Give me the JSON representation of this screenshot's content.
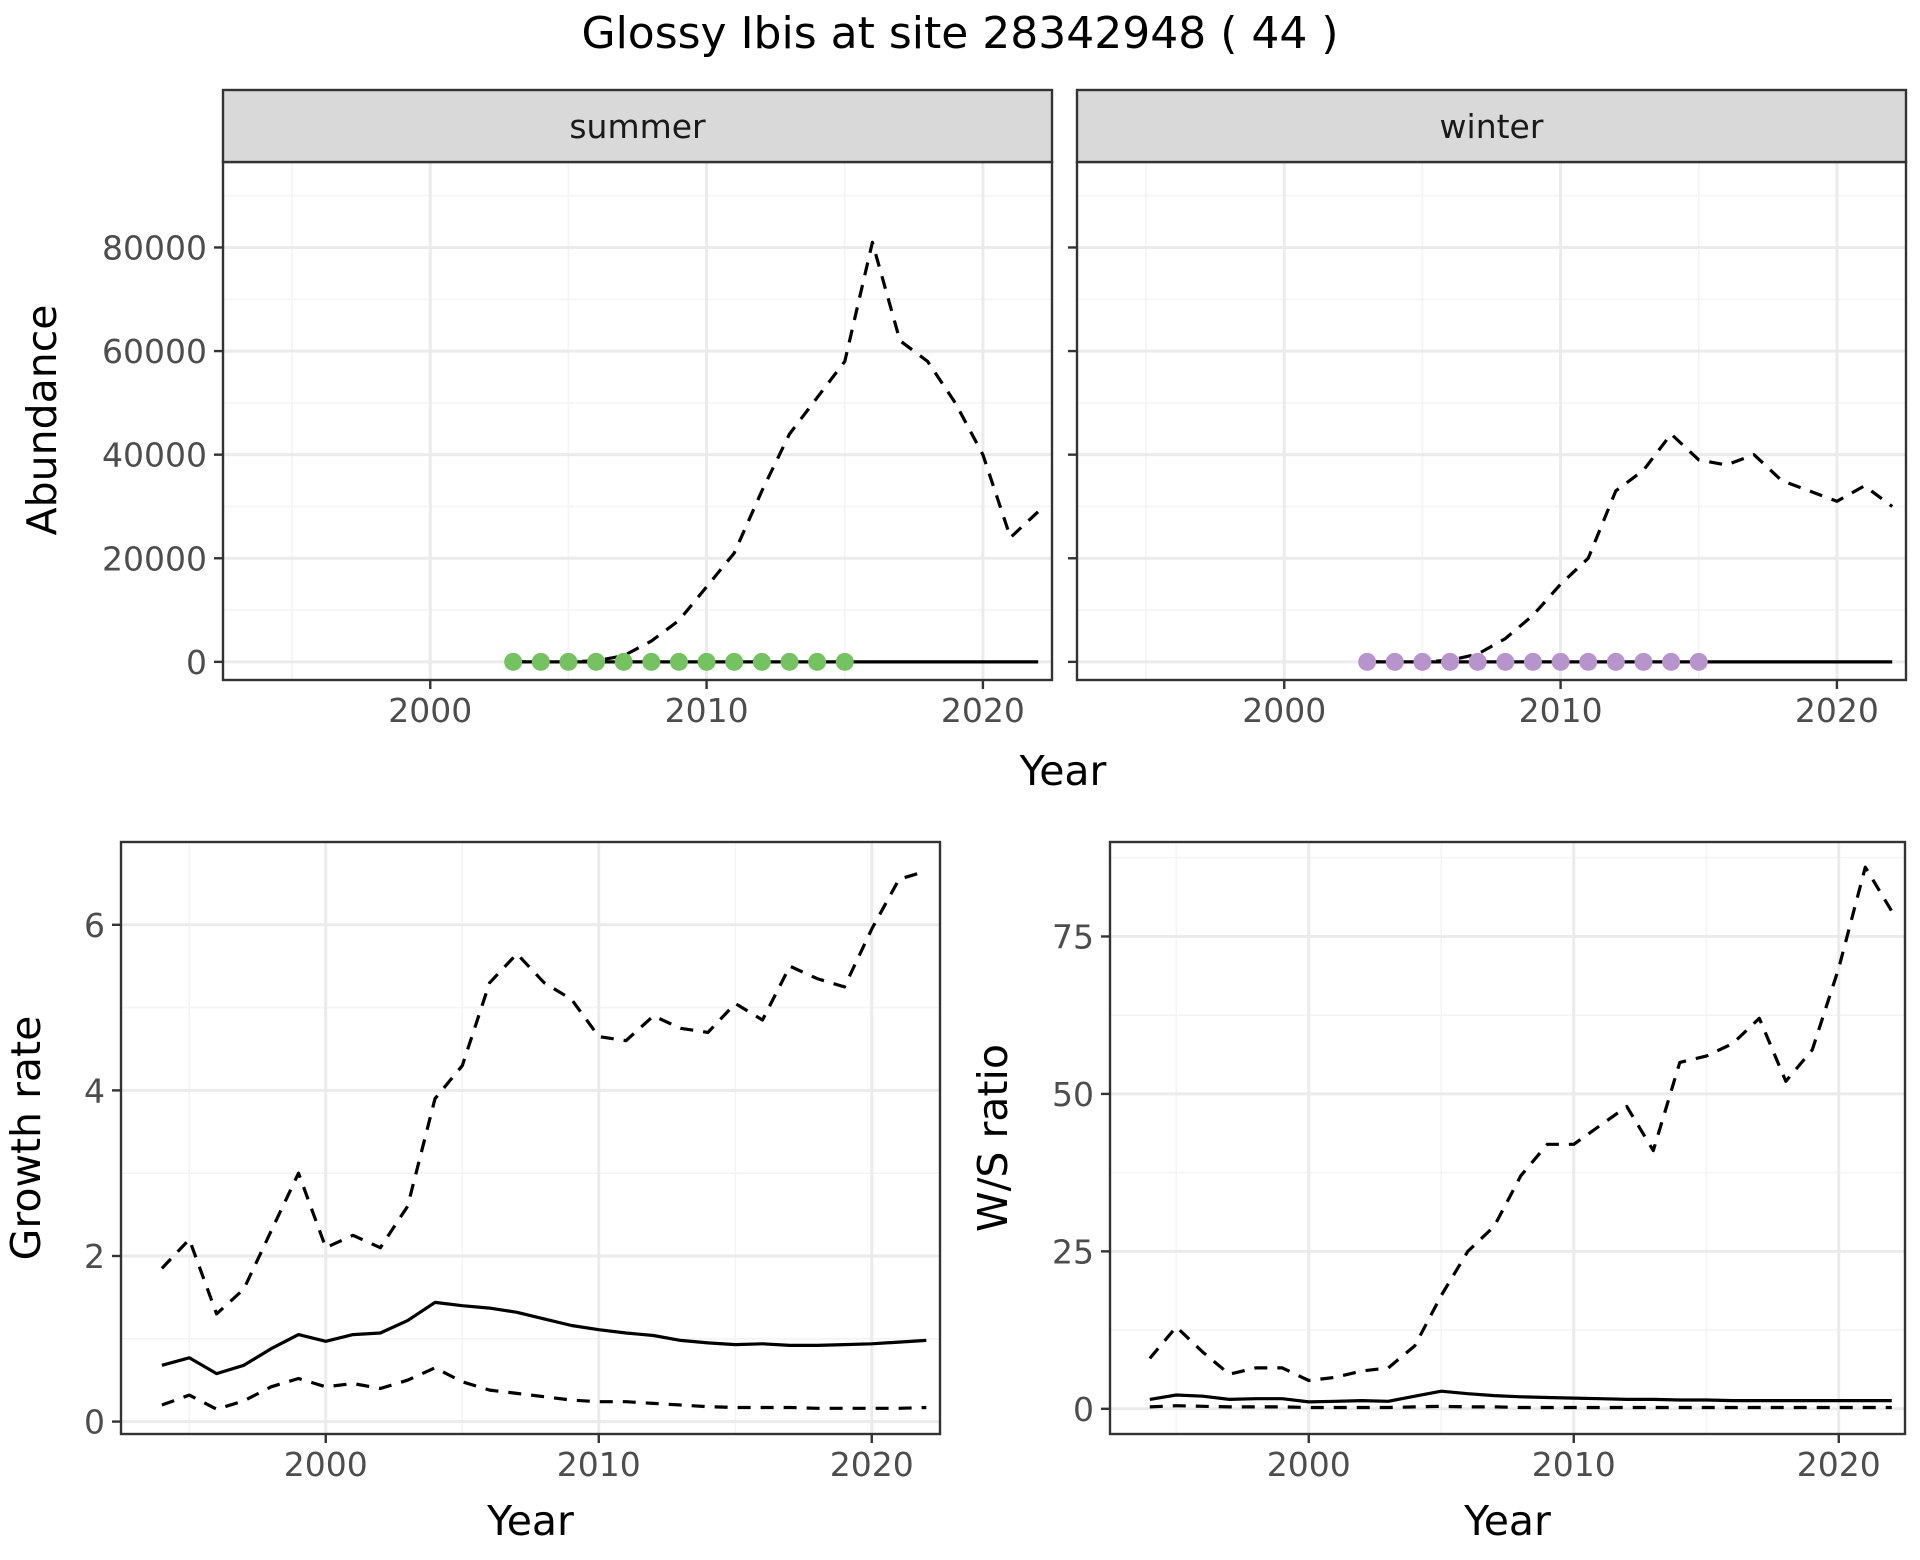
{
  "title": "Glossy Ibis at site 28342948 ( 44 )",
  "colors": {
    "summer_points": "#74c260",
    "winter_points": "#b894cc",
    "strip_bg": "#d9d9d9",
    "grid_major": "#ebebeb",
    "grid_minor": "#f4f4f4",
    "line": "#000000"
  },
  "chart_data": [
    {
      "id": "abundance-summer",
      "type": "line",
      "facet": "summer",
      "xlabel": "Year",
      "ylabel": "Abundance",
      "xlim": [
        1992.5,
        2022.5
      ],
      "ylim": [
        -3500,
        96500
      ],
      "xticks": [
        2000,
        2010,
        2020
      ],
      "yticks": [
        0,
        20000,
        40000,
        60000,
        80000
      ],
      "series": [
        {
          "name": "upper bound",
          "style": "dashed",
          "x": [
            2003,
            2004,
            2005,
            2006,
            2007,
            2008,
            2009,
            2010,
            2011,
            2012,
            2013,
            2014,
            2015,
            2016,
            2017,
            2018,
            2019,
            2020,
            2021,
            2022
          ],
          "y": [
            0,
            0,
            0,
            200,
            1200,
            4000,
            8000,
            14500,
            21000,
            33000,
            44000,
            51000,
            58000,
            81000,
            62000,
            58000,
            50000,
            40000,
            24000,
            29000
          ]
        },
        {
          "name": "estimate",
          "style": "solid",
          "x": [
            2003,
            2022
          ],
          "y": [
            0,
            0
          ]
        },
        {
          "name": "observed counts",
          "style": "points",
          "x": [
            2003,
            2004,
            2005,
            2006,
            2007,
            2008,
            2009,
            2010,
            2011,
            2012,
            2013,
            2014,
            2015
          ],
          "y": [
            0,
            0,
            0,
            0,
            0,
            0,
            0,
            0,
            0,
            0,
            0,
            0,
            0
          ]
        }
      ]
    },
    {
      "id": "abundance-winter",
      "type": "line",
      "facet": "winter",
      "xlabel": "Year",
      "ylabel": "Abundance",
      "xlim": [
        1992.5,
        2022.5
      ],
      "ylim": [
        -3500,
        96500
      ],
      "xticks": [
        2000,
        2010,
        2020
      ],
      "yticks": [
        0,
        20000,
        40000,
        60000,
        80000
      ],
      "series": [
        {
          "name": "upper bound",
          "style": "dashed",
          "x": [
            2003,
            2004,
            2005,
            2006,
            2007,
            2008,
            2009,
            2010,
            2011,
            2012,
            2013,
            2014,
            2015,
            2016,
            2017,
            2018,
            2019,
            2020,
            2021,
            2022
          ],
          "y": [
            0,
            0,
            0,
            300,
            1500,
            4500,
            9000,
            15000,
            20000,
            33000,
            37000,
            44000,
            39000,
            38000,
            40000,
            35000,
            33000,
            31000,
            34000,
            30000
          ]
        },
        {
          "name": "estimate",
          "style": "solid",
          "x": [
            2003,
            2022
          ],
          "y": [
            0,
            0
          ]
        },
        {
          "name": "observed counts",
          "style": "points",
          "x": [
            2003,
            2004,
            2005,
            2006,
            2007,
            2008,
            2009,
            2010,
            2011,
            2012,
            2013,
            2014,
            2015
          ],
          "y": [
            0,
            0,
            0,
            0,
            0,
            0,
            0,
            0,
            0,
            0,
            0,
            0,
            0
          ]
        }
      ]
    },
    {
      "id": "growth-rate",
      "type": "line",
      "xlabel": "Year",
      "ylabel": "Growth rate",
      "xlim": [
        1992.5,
        2022.5
      ],
      "ylim": [
        -0.15,
        7.0
      ],
      "xticks": [
        2000,
        2010,
        2020
      ],
      "yticks": [
        0,
        2,
        4,
        6
      ],
      "series": [
        {
          "name": "upper bound",
          "style": "dashed",
          "x": [
            1994,
            1995,
            1996,
            1997,
            1998,
            1999,
            2000,
            2001,
            2002,
            2003,
            2004,
            2005,
            2006,
            2007,
            2008,
            2009,
            2010,
            2011,
            2012,
            2013,
            2014,
            2015,
            2016,
            2017,
            2018,
            2019,
            2020,
            2021,
            2022
          ],
          "y": [
            1.85,
            2.2,
            1.3,
            1.6,
            2.3,
            3.0,
            2.1,
            2.25,
            2.1,
            2.6,
            3.9,
            4.3,
            5.3,
            5.65,
            5.3,
            5.1,
            4.65,
            4.6,
            4.9,
            4.75,
            4.7,
            5.05,
            4.85,
            5.5,
            5.35,
            5.25,
            5.95,
            6.55,
            6.65
          ]
        },
        {
          "name": "estimate",
          "style": "solid",
          "x": [
            1994,
            1995,
            1996,
            1997,
            1998,
            1999,
            2000,
            2001,
            2002,
            2003,
            2004,
            2005,
            2006,
            2007,
            2008,
            2009,
            2010,
            2011,
            2012,
            2013,
            2014,
            2015,
            2016,
            2017,
            2018,
            2019,
            2020,
            2021,
            2022
          ],
          "y": [
            0.68,
            0.77,
            0.58,
            0.68,
            0.88,
            1.05,
            0.97,
            1.05,
            1.07,
            1.22,
            1.44,
            1.4,
            1.37,
            1.32,
            1.24,
            1.16,
            1.11,
            1.07,
            1.04,
            0.98,
            0.95,
            0.93,
            0.94,
            0.92,
            0.92,
            0.93,
            0.94,
            0.96,
            0.98
          ]
        },
        {
          "name": "lower bound",
          "style": "dashed",
          "x": [
            1994,
            1995,
            1996,
            1997,
            1998,
            1999,
            2000,
            2001,
            2002,
            2003,
            2004,
            2005,
            2006,
            2007,
            2008,
            2009,
            2010,
            2011,
            2012,
            2013,
            2014,
            2015,
            2016,
            2017,
            2018,
            2019,
            2020,
            2021,
            2022
          ],
          "y": [
            0.2,
            0.32,
            0.15,
            0.25,
            0.42,
            0.52,
            0.42,
            0.46,
            0.4,
            0.5,
            0.65,
            0.48,
            0.38,
            0.34,
            0.3,
            0.26,
            0.24,
            0.24,
            0.22,
            0.2,
            0.18,
            0.17,
            0.17,
            0.17,
            0.16,
            0.16,
            0.16,
            0.16,
            0.17
          ]
        }
      ]
    },
    {
      "id": "ws-ratio",
      "type": "line",
      "xlabel": "Year",
      "ylabel": "W/S ratio",
      "xlim": [
        1992.5,
        2022.5
      ],
      "ylim": [
        -4,
        90
      ],
      "xticks": [
        2000,
        2010,
        2020
      ],
      "yticks": [
        0,
        25,
        50,
        75
      ],
      "series": [
        {
          "name": "upper bound",
          "style": "dashed",
          "x": [
            1994,
            1995,
            1996,
            1997,
            1998,
            1999,
            2000,
            2001,
            2002,
            2003,
            2004,
            2005,
            2006,
            2007,
            2008,
            2009,
            2010,
            2011,
            2012,
            2013,
            2014,
            2015,
            2016,
            2017,
            2018,
            2019,
            2020,
            2021,
            2022
          ],
          "y": [
            8,
            13,
            9,
            5.5,
            6.5,
            6.5,
            4.5,
            5,
            6,
            6.5,
            10,
            18,
            25,
            29,
            37,
            42,
            42,
            45,
            48,
            41,
            55,
            56,
            58,
            62,
            52,
            57,
            70,
            86,
            79
          ]
        },
        {
          "name": "estimate",
          "style": "solid",
          "x": [
            1994,
            1995,
            1996,
            1997,
            1998,
            1999,
            2000,
            2001,
            2002,
            2003,
            2004,
            2005,
            2006,
            2007,
            2008,
            2009,
            2010,
            2011,
            2012,
            2013,
            2014,
            2015,
            2016,
            2017,
            2018,
            2019,
            2020,
            2021,
            2022
          ],
          "y": [
            1.5,
            2.2,
            2.0,
            1.5,
            1.6,
            1.6,
            1.1,
            1.2,
            1.3,
            1.2,
            2.0,
            2.8,
            2.4,
            2.1,
            1.9,
            1.8,
            1.7,
            1.6,
            1.5,
            1.5,
            1.4,
            1.4,
            1.3,
            1.3,
            1.3,
            1.3,
            1.3,
            1.3,
            1.3
          ]
        },
        {
          "name": "lower bound",
          "style": "dashed",
          "x": [
            1994,
            1995,
            1996,
            1997,
            1998,
            1999,
            2000,
            2001,
            2002,
            2003,
            2004,
            2005,
            2006,
            2007,
            2008,
            2009,
            2010,
            2011,
            2012,
            2013,
            2014,
            2015,
            2016,
            2017,
            2018,
            2019,
            2020,
            2021,
            2022
          ],
          "y": [
            0.3,
            0.5,
            0.4,
            0.3,
            0.3,
            0.3,
            0.2,
            0.2,
            0.2,
            0.2,
            0.3,
            0.4,
            0.3,
            0.3,
            0.2,
            0.2,
            0.2,
            0.2,
            0.2,
            0.2,
            0.2,
            0.2,
            0.2,
            0.2,
            0.2,
            0.2,
            0.2,
            0.2,
            0.2
          ]
        }
      ]
    }
  ]
}
